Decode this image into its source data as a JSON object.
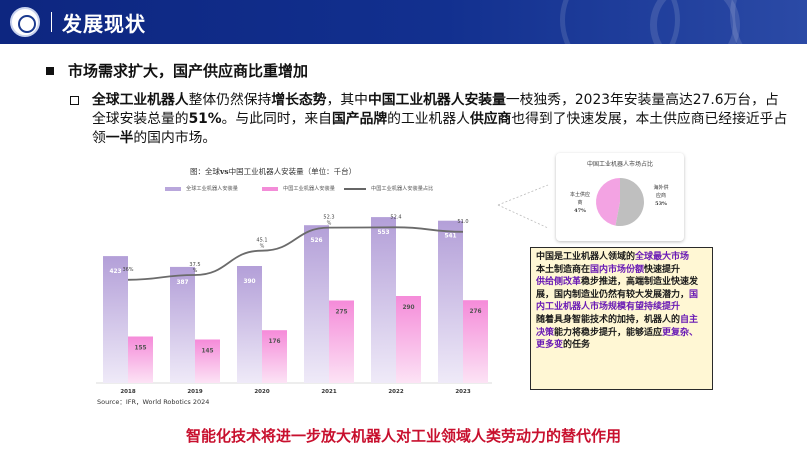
{
  "header": {
    "title": "发展现状",
    "logo_icon": "university-seal-icon"
  },
  "section": {
    "title": "市场需求扩大，国产供应商比重增加"
  },
  "bullet": {
    "segments": [
      {
        "text": "全球工业机器人",
        "bold": true
      },
      {
        "text": "整体仍然保持",
        "bold": false
      },
      {
        "text": "增长态势",
        "bold": true
      },
      {
        "text": "，其中",
        "bold": false
      },
      {
        "text": "中国工业机器人安装量",
        "bold": true
      },
      {
        "text": "一枝独秀，2023年安装量高达27.6万台，占全球安装总量的",
        "bold": false
      },
      {
        "text": "51%",
        "bold": true
      },
      {
        "text": "。与此同时，来自",
        "bold": false
      },
      {
        "text": "国产品牌",
        "bold": true
      },
      {
        "text": "的工业机器人",
        "bold": false
      },
      {
        "text": "供应商",
        "bold": true
      },
      {
        "text": "也得到了快速发展，本土供应商已经接近乎占领",
        "bold": false
      },
      {
        "text": "一半",
        "bold": true
      },
      {
        "text": "的国内市场。",
        "bold": false
      }
    ]
  },
  "chart": {
    "title_prefix": "图：全球",
    "title_vs": "vs",
    "title_suffix": "中国工业机器人安装量（单位：千台）",
    "source": "Source：IFR，World Robotics 2024"
  },
  "chart_data": {
    "type": "bar",
    "categories": [
      "2018",
      "2019",
      "2020",
      "2021",
      "2022",
      "2023"
    ],
    "series": [
      {
        "name": "全球工业机器人安装量",
        "values": [
          423,
          387,
          390,
          526,
          553,
          541
        ],
        "color": "#b9a7dc"
      },
      {
        "name": "中国工业机器人安装量",
        "values": [
          155,
          145,
          176,
          275,
          290,
          276
        ],
        "color": "#f38cd8"
      },
      {
        "name": "中国工业机器人安装量占比",
        "values": [
          36,
          37.5,
          45.1,
          52.3,
          52.4,
          51.0
        ],
        "labels": [
          "36%",
          "37.5\n%",
          "45.1\n%",
          "52.3\n%",
          "52.4",
          "51.0"
        ],
        "color": "#666666",
        "type": "line",
        "axis": "secondary"
      }
    ],
    "ylim": [
      0,
      600
    ],
    "y2lim": [
      0,
      70
    ],
    "grid": false,
    "legend": "top"
  },
  "pie": {
    "title": "中国工业机器人市场占比",
    "slices": [
      {
        "name": "本土供应商",
        "label": "本土供应\n商",
        "value": 47,
        "pct": "47%",
        "color": "#f3a3e3"
      },
      {
        "name": "海外供应商",
        "label": "海外供\n应商",
        "value": 53,
        "pct": "53%",
        "color": "#bfbfbf"
      }
    ]
  },
  "callout": {
    "p1a": "中国是工业机器人领域的",
    "p1b": "全球最大市场",
    "p2a": "本土制造商在",
    "p2b": "国内市场份额",
    "p2c": "快速提升",
    "p3a": "供给侧改革",
    "p3b": "稳步推进，高端制造业快速发展，国内制造业仍然有较大发展潜力，",
    "p3c": "国内工业机器人市场规模有望持续提升",
    "p4a": "随着具身智能技术的加持，机器人的",
    "p4b": "自主决策",
    "p4c": "能力将稳步提升，能够适应",
    "p4d": "更复杂、更多变",
    "p4e": "的任务"
  },
  "footer": {
    "conclusion": "智能化技术将进一步放大机器人对工业领域人类劳动力的替代作用"
  }
}
